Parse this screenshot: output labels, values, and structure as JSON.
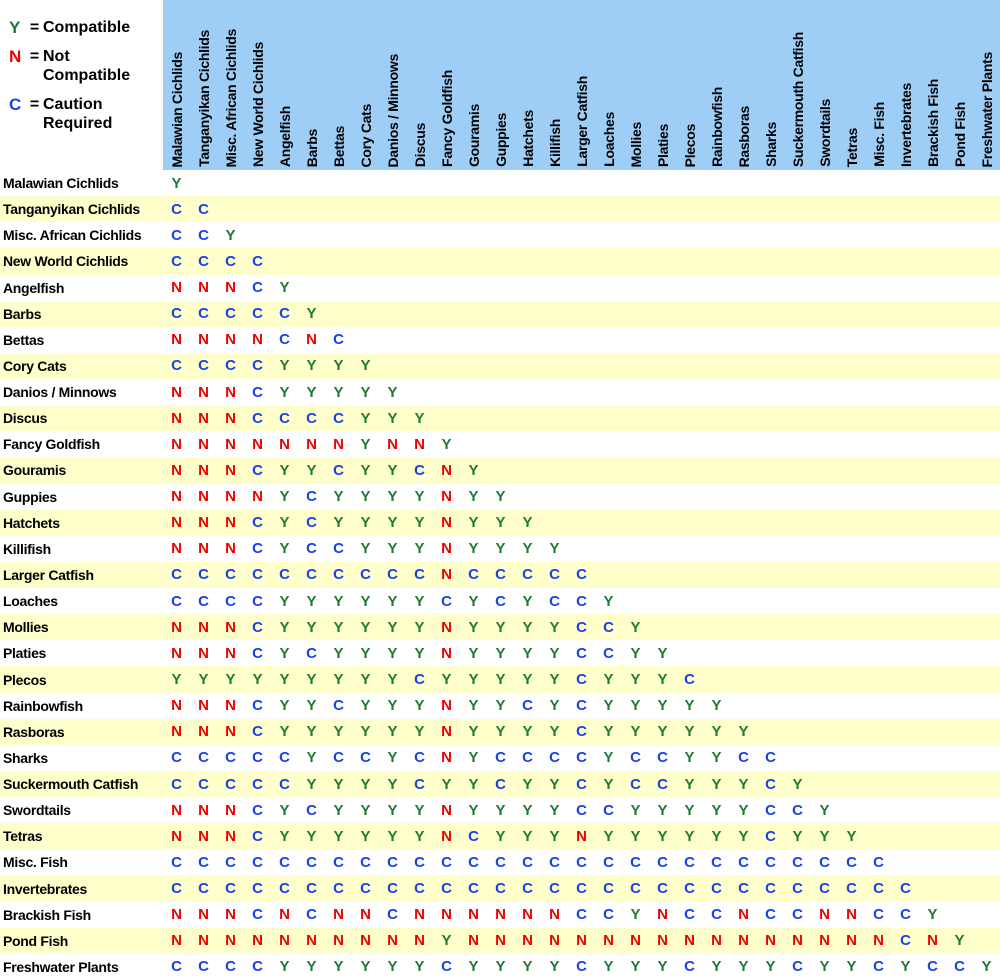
{
  "legend": {
    "equals_sign": "=",
    "items": [
      {
        "symbol": "Y",
        "label": "Compatible"
      },
      {
        "symbol": "N",
        "label": "Not\nCompatible"
      },
      {
        "symbol": "C",
        "label": "Caution\nRequired"
      }
    ]
  },
  "colors": {
    "header_bg": "#9ECDF6",
    "row_bg": "#FFFFFF",
    "row_alt_bg": "#FFFFCC",
    "compatible": "#1E7B34",
    "not_compatible": "#EE0000",
    "caution": "#1A41E8",
    "label_text": "#000000"
  },
  "chart_data": {
    "type": "table",
    "legend": {
      "Y": "Compatible",
      "N": "Not Compatible",
      "C": "Caution Required"
    },
    "columns": [
      "Malawian Cichlids",
      "Tanganyikan Cichlids",
      "Misc. African Cichlids",
      "New World Cichlids",
      "Angelfish",
      "Barbs",
      "Bettas",
      "Cory Cats",
      "Danios / Minnows",
      "Discus",
      "Fancy Goldfish",
      "Gouramis",
      "Guppies",
      "Hatchets",
      "Killifish",
      "Larger Catfish",
      "Loaches",
      "Mollies",
      "Platies",
      "Plecos",
      "Rainbowfish",
      "Rasboras",
      "Sharks",
      "Suckermouth Catfish",
      "Swordtails",
      "Tetras",
      "Misc. Fish",
      "Invertebrates",
      "Brackish Fish",
      "Pond Fish",
      "Freshwater Plants"
    ],
    "rows": [
      {
        "label": "Malawian Cichlids",
        "values": [
          "Y"
        ]
      },
      {
        "label": "Tanganyikan Cichlids",
        "values": [
          "C",
          "C"
        ]
      },
      {
        "label": "Misc. African Cichlids",
        "values": [
          "C",
          "C",
          "Y"
        ]
      },
      {
        "label": "New World Cichlids",
        "values": [
          "C",
          "C",
          "C",
          "C"
        ]
      },
      {
        "label": "Angelfish",
        "values": [
          "N",
          "N",
          "N",
          "C",
          "Y"
        ]
      },
      {
        "label": "Barbs",
        "values": [
          "C",
          "C",
          "C",
          "C",
          "C",
          "Y"
        ]
      },
      {
        "label": "Bettas",
        "values": [
          "N",
          "N",
          "N",
          "N",
          "C",
          "N",
          "C"
        ]
      },
      {
        "label": "Cory Cats",
        "values": [
          "C",
          "C",
          "C",
          "C",
          "Y",
          "Y",
          "Y",
          "Y"
        ]
      },
      {
        "label": "Danios / Minnows",
        "values": [
          "N",
          "N",
          "N",
          "C",
          "Y",
          "Y",
          "Y",
          "Y",
          "Y"
        ]
      },
      {
        "label": "Discus",
        "values": [
          "N",
          "N",
          "N",
          "C",
          "C",
          "C",
          "C",
          "Y",
          "Y",
          "Y"
        ]
      },
      {
        "label": "Fancy Goldfish",
        "values": [
          "N",
          "N",
          "N",
          "N",
          "N",
          "N",
          "N",
          "Y",
          "N",
          "N",
          "Y"
        ]
      },
      {
        "label": "Gouramis",
        "values": [
          "N",
          "N",
          "N",
          "C",
          "Y",
          "Y",
          "C",
          "Y",
          "Y",
          "C",
          "N",
          "Y"
        ]
      },
      {
        "label": "Guppies",
        "values": [
          "N",
          "N",
          "N",
          "N",
          "Y",
          "C",
          "Y",
          "Y",
          "Y",
          "Y",
          "N",
          "Y",
          "Y"
        ]
      },
      {
        "label": "Hatchets",
        "values": [
          "N",
          "N",
          "N",
          "C",
          "Y",
          "C",
          "Y",
          "Y",
          "Y",
          "Y",
          "N",
          "Y",
          "Y",
          "Y"
        ]
      },
      {
        "label": "Killifish",
        "values": [
          "N",
          "N",
          "N",
          "C",
          "Y",
          "C",
          "C",
          "Y",
          "Y",
          "Y",
          "N",
          "Y",
          "Y",
          "Y",
          "Y"
        ]
      },
      {
        "label": "Larger Catfish",
        "values": [
          "C",
          "C",
          "C",
          "C",
          "C",
          "C",
          "C",
          "C",
          "C",
          "C",
          "N",
          "C",
          "C",
          "C",
          "C",
          "C"
        ]
      },
      {
        "label": "Loaches",
        "values": [
          "C",
          "C",
          "C",
          "C",
          "Y",
          "Y",
          "Y",
          "Y",
          "Y",
          "Y",
          "C",
          "Y",
          "C",
          "Y",
          "C",
          "C",
          "Y"
        ]
      },
      {
        "label": "Mollies",
        "values": [
          "N",
          "N",
          "N",
          "C",
          "Y",
          "Y",
          "Y",
          "Y",
          "Y",
          "Y",
          "N",
          "Y",
          "Y",
          "Y",
          "Y",
          "C",
          "C",
          "Y"
        ]
      },
      {
        "label": "Platies",
        "values": [
          "N",
          "N",
          "N",
          "C",
          "Y",
          "C",
          "Y",
          "Y",
          "Y",
          "Y",
          "N",
          "Y",
          "Y",
          "Y",
          "Y",
          "C",
          "C",
          "Y",
          "Y"
        ]
      },
      {
        "label": "Plecos",
        "values": [
          "Y",
          "Y",
          "Y",
          "Y",
          "Y",
          "Y",
          "Y",
          "Y",
          "Y",
          "C",
          "Y",
          "Y",
          "Y",
          "Y",
          "Y",
          "C",
          "Y",
          "Y",
          "Y",
          "C"
        ]
      },
      {
        "label": "Rainbowfish",
        "values": [
          "N",
          "N",
          "N",
          "C",
          "Y",
          "Y",
          "C",
          "Y",
          "Y",
          "Y",
          "N",
          "Y",
          "Y",
          "C",
          "Y",
          "C",
          "Y",
          "Y",
          "Y",
          "Y",
          "Y"
        ]
      },
      {
        "label": "Rasboras",
        "values": [
          "N",
          "N",
          "N",
          "C",
          "Y",
          "Y",
          "Y",
          "Y",
          "Y",
          "Y",
          "N",
          "Y",
          "Y",
          "Y",
          "Y",
          "C",
          "Y",
          "Y",
          "Y",
          "Y",
          "Y",
          "Y"
        ]
      },
      {
        "label": "Sharks",
        "values": [
          "C",
          "C",
          "C",
          "C",
          "C",
          "Y",
          "C",
          "C",
          "Y",
          "C",
          "N",
          "Y",
          "C",
          "C",
          "C",
          "C",
          "Y",
          "C",
          "C",
          "Y",
          "Y",
          "C",
          "C"
        ]
      },
      {
        "label": "Suckermouth Catfish",
        "values": [
          "C",
          "C",
          "C",
          "C",
          "C",
          "Y",
          "Y",
          "Y",
          "Y",
          "C",
          "Y",
          "Y",
          "C",
          "Y",
          "Y",
          "C",
          "Y",
          "C",
          "C",
          "Y",
          "Y",
          "Y",
          "C",
          "Y"
        ]
      },
      {
        "label": "Swordtails",
        "values": [
          "N",
          "N",
          "N",
          "C",
          "Y",
          "C",
          "Y",
          "Y",
          "Y",
          "Y",
          "N",
          "Y",
          "Y",
          "Y",
          "Y",
          "C",
          "C",
          "Y",
          "Y",
          "Y",
          "Y",
          "Y",
          "C",
          "C",
          "Y"
        ]
      },
      {
        "label": "Tetras",
        "values": [
          "N",
          "N",
          "N",
          "C",
          "Y",
          "Y",
          "Y",
          "Y",
          "Y",
          "Y",
          "N",
          "C",
          "Y",
          "Y",
          "Y",
          "N",
          "Y",
          "Y",
          "Y",
          "Y",
          "Y",
          "Y",
          "C",
          "Y",
          "Y",
          "Y"
        ]
      },
      {
        "label": "Misc. Fish",
        "values": [
          "C",
          "C",
          "C",
          "C",
          "C",
          "C",
          "C",
          "C",
          "C",
          "C",
          "C",
          "C",
          "C",
          "C",
          "C",
          "C",
          "C",
          "C",
          "C",
          "C",
          "C",
          "C",
          "C",
          "C",
          "C",
          "C",
          "C"
        ]
      },
      {
        "label": "Invertebrates",
        "values": [
          "C",
          "C",
          "C",
          "C",
          "C",
          "C",
          "C",
          "C",
          "C",
          "C",
          "C",
          "C",
          "C",
          "C",
          "C",
          "C",
          "C",
          "C",
          "C",
          "C",
          "C",
          "C",
          "C",
          "C",
          "C",
          "C",
          "C",
          "C"
        ]
      },
      {
        "label": "Brackish Fish",
        "values": [
          "N",
          "N",
          "N",
          "C",
          "N",
          "C",
          "N",
          "N",
          "C",
          "N",
          "N",
          "N",
          "N",
          "N",
          "N",
          "C",
          "C",
          "Y",
          "N",
          "C",
          "C",
          "N",
          "C",
          "C",
          "N",
          "N",
          "C",
          "C",
          "Y"
        ]
      },
      {
        "label": "Pond Fish",
        "values": [
          "N",
          "N",
          "N",
          "N",
          "N",
          "N",
          "N",
          "N",
          "N",
          "N",
          "Y",
          "N",
          "N",
          "N",
          "N",
          "N",
          "N",
          "N",
          "N",
          "N",
          "N",
          "N",
          "N",
          "N",
          "N",
          "N",
          "N",
          "C",
          "N",
          "Y"
        ]
      },
      {
        "label": "Freshwater Plants",
        "values": [
          "C",
          "C",
          "C",
          "C",
          "Y",
          "Y",
          "Y",
          "Y",
          "Y",
          "Y",
          "C",
          "Y",
          "Y",
          "Y",
          "Y",
          "C",
          "Y",
          "Y",
          "Y",
          "C",
          "Y",
          "Y",
          "Y",
          "C",
          "Y",
          "Y",
          "C",
          "Y",
          "C",
          "C",
          "Y"
        ]
      }
    ]
  }
}
